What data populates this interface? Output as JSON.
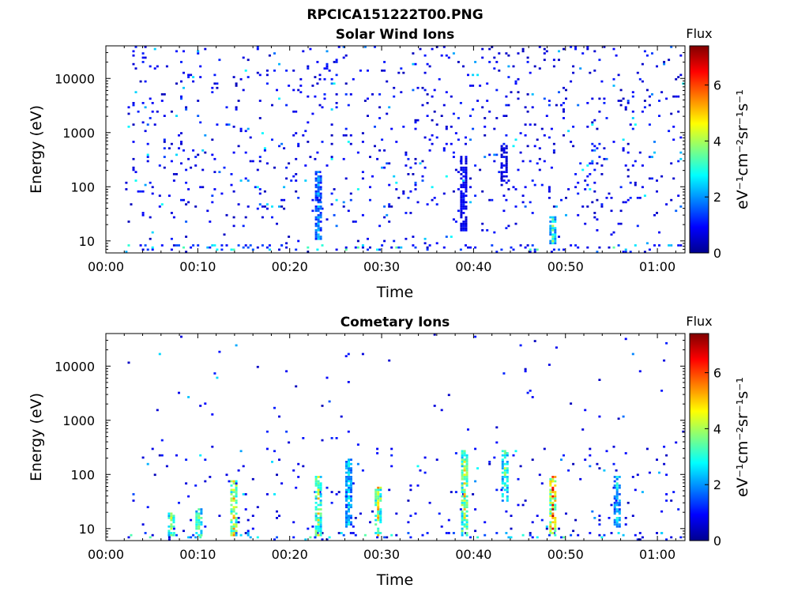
{
  "figure_title": "RPCICA151222T00.PNG",
  "colorbar": {
    "title": "Flux",
    "label": "eV⁻¹cm⁻²sr⁻¹s⁻¹",
    "ticks": [
      "0",
      "2",
      "4",
      "6"
    ],
    "range": [
      0,
      7.4
    ],
    "colormap": "jet"
  },
  "chart_data": [
    {
      "type": "heatmap",
      "title": "Solar Wind Ions",
      "xlabel": "Time",
      "ylabel": "Energy (eV)",
      "x_ticks": [
        "00:00",
        "00:10",
        "00:20",
        "00:30",
        "00:40",
        "00:50",
        "01:00"
      ],
      "y_ticks": [
        "10",
        "100",
        "1000",
        "10000"
      ],
      "xlim_minutes": [
        0,
        63
      ],
      "ylim_eV": [
        6,
        40000
      ],
      "y_scale": "log",
      "flux_scale": [
        0,
        7.4
      ],
      "events": [
        {
          "t_min": 23.0,
          "e_lo": 10,
          "e_hi": 200,
          "flux": 2.5
        },
        {
          "t_min": 38.8,
          "e_lo": 15,
          "e_hi": 400,
          "flux": 1.2
        },
        {
          "t_min": 43.2,
          "e_lo": 100,
          "e_hi": 600,
          "flux": 1.0
        },
        {
          "t_min": 48.5,
          "e_lo": 8,
          "e_hi": 30,
          "flux": 4.0
        }
      ]
    },
    {
      "type": "heatmap",
      "title": "Cometary Ions",
      "xlabel": "Time",
      "ylabel": "Energy (eV)",
      "x_ticks": [
        "00:00",
        "00:10",
        "00:20",
        "00:30",
        "00:40",
        "00:50",
        "01:00"
      ],
      "y_ticks": [
        "10",
        "100",
        "1000",
        "10000"
      ],
      "xlim_minutes": [
        0,
        63
      ],
      "ylim_eV": [
        6,
        40000
      ],
      "y_scale": "log",
      "flux_scale": [
        0,
        7.4
      ],
      "events": [
        {
          "t_min": 7.0,
          "e_lo": 7,
          "e_hi": 20,
          "flux": 4.5
        },
        {
          "t_min": 10.0,
          "e_lo": 7,
          "e_hi": 25,
          "flux": 4.5
        },
        {
          "t_min": 13.8,
          "e_lo": 7,
          "e_hi": 80,
          "flux": 5.5
        },
        {
          "t_min": 23.0,
          "e_lo": 7,
          "e_hi": 100,
          "flux": 5.0
        },
        {
          "t_min": 26.3,
          "e_lo": 10,
          "e_hi": 200,
          "flux": 3.0
        },
        {
          "t_min": 29.5,
          "e_lo": 7,
          "e_hi": 60,
          "flux": 5.5
        },
        {
          "t_min": 38.9,
          "e_lo": 7,
          "e_hi": 300,
          "flux": 5.2
        },
        {
          "t_min": 43.3,
          "e_lo": 30,
          "e_hi": 300,
          "flux": 4.2
        },
        {
          "t_min": 48.5,
          "e_lo": 7,
          "e_hi": 100,
          "flux": 6.8
        },
        {
          "t_min": 55.5,
          "e_lo": 10,
          "e_hi": 100,
          "flux": 3.0
        }
      ]
    }
  ]
}
